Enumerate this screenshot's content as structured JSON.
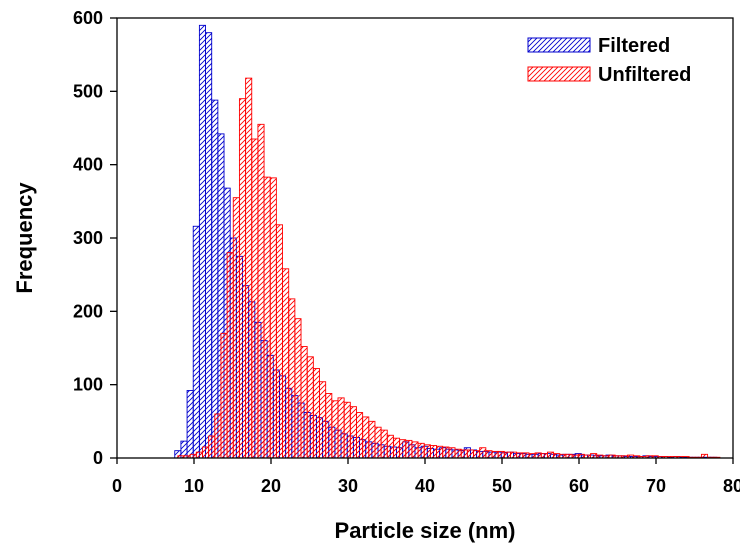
{
  "chart_data": {
    "type": "bar",
    "title": "",
    "xlabel": "Particle size (nm)",
    "ylabel": "Frequency",
    "xlim": [
      0,
      80
    ],
    "ylim": [
      0,
      600
    ],
    "xticks": [
      "0",
      "10",
      "20",
      "30",
      "40",
      "50",
      "60",
      "70",
      "80"
    ],
    "yticks": [
      "0",
      "100",
      "200",
      "300",
      "400",
      "500",
      "600"
    ],
    "grid": false,
    "legend_position": "top-right",
    "bar_style": "hatched outline",
    "series": [
      {
        "name": "Filtered",
        "color": "#0000cc",
        "x": [
          7.5,
          8.3,
          9.1,
          9.9,
          10.7,
          11.5,
          12.3,
          13.1,
          13.9,
          14.7,
          15.5,
          16.3,
          17.1,
          17.9,
          18.7,
          19.5,
          20.3,
          21.1,
          21.9,
          22.7,
          23.5,
          24.3,
          25.1,
          25.9,
          26.7,
          27.5,
          28.3,
          29.1,
          29.9,
          30.7,
          31.5,
          32.3,
          33.1,
          33.9,
          34.7,
          35.5,
          36.3,
          37.1,
          37.9,
          38.7,
          39.5,
          40.3,
          41.1,
          41.9,
          42.7,
          43.5,
          44.3,
          45.1,
          45.9,
          46.7,
          47.5,
          48.3,
          49.1,
          49.9,
          50.7,
          51.5,
          52.3,
          53.1,
          53.9,
          54.7,
          55.5,
          56.3,
          57.1,
          57.9,
          58.7,
          59.5,
          60.3,
          61.1,
          61.9,
          62.7,
          63.5,
          64.3,
          65.1,
          65.9,
          66.7,
          67.5,
          68.3,
          69.1,
          69.9,
          70.7,
          71.5,
          72.3,
          73.1,
          73.9,
          74.7,
          75.5,
          76.3,
          77.1
        ],
        "values": [
          10,
          23,
          92,
          316,
          590,
          580,
          488,
          442,
          368,
          300,
          275,
          235,
          213,
          185,
          160,
          140,
          120,
          112,
          95,
          85,
          75,
          62,
          58,
          55,
          50,
          42,
          38,
          33,
          30,
          28,
          25,
          22,
          20,
          18,
          16,
          15,
          14,
          22,
          18,
          14,
          16,
          13,
          12,
          14,
          12,
          11,
          10,
          14,
          11,
          9,
          9,
          8,
          8,
          7,
          8,
          6,
          6,
          5,
          5,
          6,
          6,
          5,
          4,
          5,
          5,
          6,
          4,
          4,
          3,
          3,
          4,
          3,
          3,
          2,
          2,
          2,
          3,
          2,
          2,
          2,
          1,
          2,
          1,
          1,
          1,
          1,
          1,
          1
        ]
      },
      {
        "name": "Unfiltered",
        "color": "#ff0000",
        "x": [
          7.9,
          8.7,
          9.5,
          10.3,
          11.1,
          11.9,
          12.7,
          13.5,
          14.3,
          15.1,
          15.9,
          16.7,
          17.5,
          18.3,
          19.1,
          19.9,
          20.7,
          21.5,
          22.3,
          23.1,
          23.9,
          24.7,
          25.5,
          26.3,
          27.1,
          27.9,
          28.7,
          29.5,
          30.3,
          31.1,
          31.9,
          32.7,
          33.5,
          34.3,
          35.1,
          35.9,
          36.7,
          37.5,
          38.3,
          39.1,
          39.9,
          40.7,
          41.5,
          42.3,
          43.1,
          43.9,
          44.7,
          45.5,
          46.3,
          47.1,
          47.9,
          48.7,
          49.5,
          50.3,
          51.1,
          51.9,
          52.7,
          53.5,
          54.3,
          55.1,
          55.9,
          56.7,
          57.5,
          58.3,
          59.1,
          59.9,
          60.7,
          61.5,
          62.3,
          63.1,
          63.9,
          64.7,
          65.5,
          66.3,
          67.1,
          67.9,
          68.7,
          69.5,
          70.3,
          71.1,
          71.9,
          72.7,
          73.5,
          74.3,
          75.1,
          75.9,
          76.7,
          77.5
        ],
        "values": [
          3,
          3,
          5,
          8,
          15,
          30,
          60,
          170,
          280,
          355,
          490,
          518,
          435,
          455,
          383,
          382,
          318,
          258,
          217,
          190,
          152,
          138,
          122,
          104,
          88,
          78,
          82,
          76,
          70,
          62,
          56,
          50,
          42,
          38,
          31,
          27,
          25,
          24,
          22,
          20,
          18,
          17,
          16,
          15,
          14,
          12,
          11,
          11,
          10,
          14,
          10,
          9,
          9,
          8,
          8,
          7,
          7,
          6,
          7,
          6,
          8,
          6,
          5,
          5,
          4,
          5,
          4,
          6,
          4,
          3,
          4,
          3,
          3,
          4,
          3,
          2,
          3,
          3,
          2,
          2,
          2,
          2,
          2,
          1,
          1,
          5,
          1,
          1
        ]
      }
    ]
  }
}
